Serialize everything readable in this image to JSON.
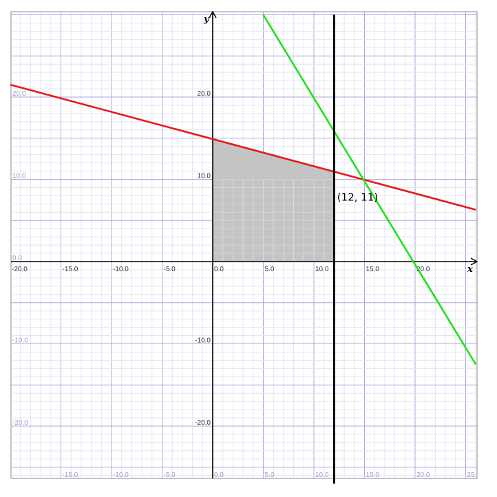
{
  "chart_data": {
    "type": "line",
    "title": "",
    "xlabel": "x",
    "ylabel": "y",
    "xlim": [
      -20,
      26
    ],
    "ylim": [
      -26,
      30
    ],
    "grid": true,
    "x_tick_labels_axis": [
      "-20.0",
      "-15.0",
      "-10.0",
      "-5.0",
      "0.0",
      "5.0",
      "10.0",
      "15.0",
      "20.0"
    ],
    "x_tick_labels_bottom": [
      "-15.0",
      "-10.0",
      "-5.0",
      "0.0",
      "5.0",
      "10.0",
      "15.0",
      "20.0",
      "25."
    ],
    "y_tick_labels_axis": [
      "20.0",
      "10.0",
      "-10.0",
      "-20.0"
    ],
    "y_tick_labels_left": [
      "20.0",
      "10.0",
      "0.0",
      "-10.0",
      "-20.0"
    ],
    "series": [
      {
        "color": "#e61a1a",
        "x": [
          -20,
          26
        ],
        "y": [
          21.5,
          6.3
        ]
      },
      {
        "color": "#22e01a",
        "x": [
          5,
          26
        ],
        "y": [
          30,
          -12.5
        ]
      },
      {
        "color": "#000000",
        "x": [
          12,
          12
        ],
        "y": [
          -27,
          30
        ]
      }
    ],
    "shaded_region": {
      "color": "#c4c4c4",
      "points": [
        [
          0,
          0
        ],
        [
          0,
          15
        ],
        [
          12,
          11
        ],
        [
          12,
          0
        ]
      ]
    },
    "annotations": [
      {
        "text": "(12, 11)",
        "x": 12.3,
        "y": 7.4
      }
    ]
  }
}
